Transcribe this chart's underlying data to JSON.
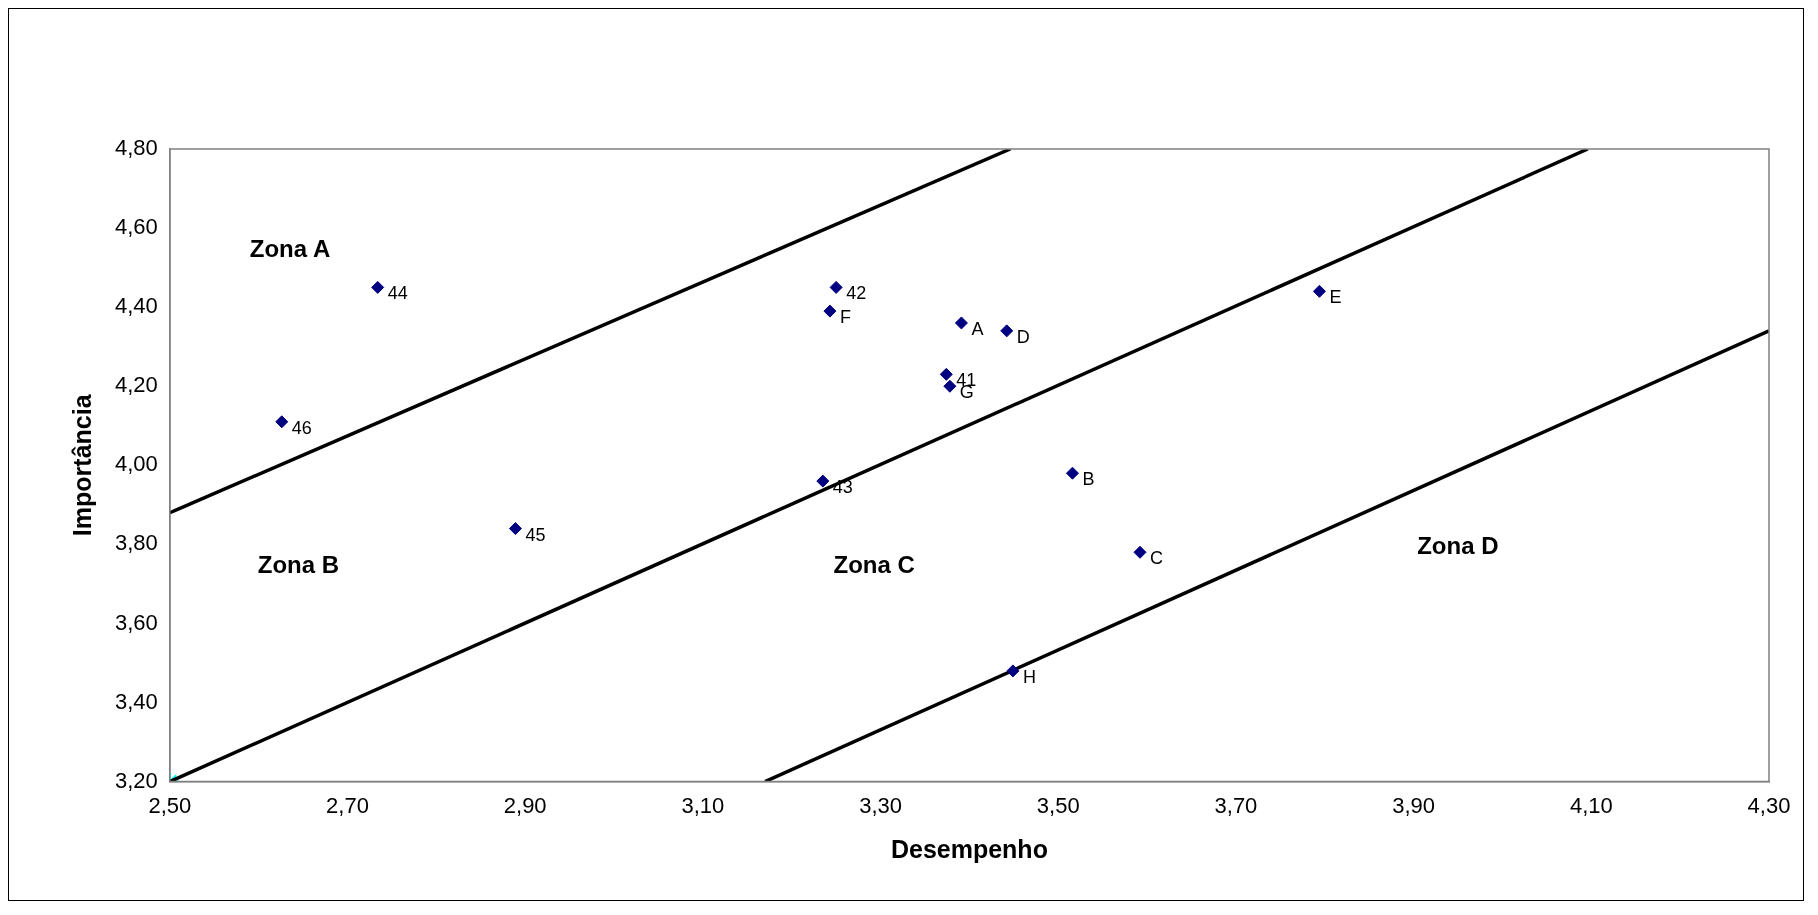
{
  "chart_data": {
    "type": "scatter",
    "xlabel": "Desempenho",
    "ylabel": "Importância",
    "xlim": [
      2.5,
      4.3
    ],
    "xticks": [
      {
        "value": 2.5,
        "label": "2,50"
      },
      {
        "value": 2.7,
        "label": "2,70"
      },
      {
        "value": 2.9,
        "label": "2,90"
      },
      {
        "value": 3.1,
        "label": "3,10"
      },
      {
        "value": 3.3,
        "label": "3,30"
      },
      {
        "value": 3.5,
        "label": "3,50"
      },
      {
        "value": 3.7,
        "label": "3,70"
      },
      {
        "value": 3.9,
        "label": "3,90"
      },
      {
        "value": 4.1,
        "label": "4,10"
      },
      {
        "value": 4.3,
        "label": "4,30"
      }
    ],
    "ylim": [
      3.2,
      4.8
    ],
    "yticks": [
      {
        "value": 3.2,
        "label": "3,20"
      },
      {
        "value": 3.4,
        "label": "3,40"
      },
      {
        "value": 3.6,
        "label": "3,60"
      },
      {
        "value": 3.8,
        "label": "3,80"
      },
      {
        "value": 4.0,
        "label": "4,00"
      },
      {
        "value": 4.2,
        "label": "4,20"
      },
      {
        "value": 4.4,
        "label": "4,40"
      },
      {
        "value": 4.6,
        "label": "4,60"
      },
      {
        "value": 4.8,
        "label": "4,80"
      }
    ],
    "grid": false,
    "legend": false,
    "marker": "diamond",
    "series": [
      {
        "type": "scatter",
        "color": "#000080",
        "x": [
          2.734,
          2.626,
          2.889,
          3.235,
          3.25,
          3.243,
          3.391,
          3.442,
          3.374,
          3.378,
          3.516,
          3.592,
          3.794,
          3.449
        ],
        "values": [
          4.45,
          4.11,
          3.84,
          3.96,
          4.45,
          4.39,
          4.36,
          4.34,
          4.23,
          4.2,
          3.98,
          3.78,
          4.44,
          3.48
        ]
      },
      {
        "type": "line",
        "color": "#000000",
        "marker": "none",
        "x": [
          2.5,
          3.446
        ],
        "values": [
          3.88,
          4.8
        ]
      },
      {
        "type": "line",
        "color": "#000000",
        "marker": "none",
        "x": [
          2.5,
          4.096
        ],
        "values": [
          3.2,
          4.8
        ]
      },
      {
        "type": "line",
        "color": "#000000",
        "marker": "none",
        "x": [
          3.17,
          4.3
        ],
        "values": [
          3.2,
          4.34
        ]
      },
      {
        "type": "scatter",
        "color": "#00ffff",
        "marker": "cross",
        "x": [
          2.5
        ],
        "values": [
          3.2
        ]
      }
    ],
    "annotations": [
      "Zona A",
      "Zona B",
      "Zona C",
      "Zona D",
      {
        "text": "44",
        "x": 2.734,
        "y": 4.45
      },
      {
        "text": "46",
        "x": 2.626,
        "y": 4.11
      },
      {
        "text": "45",
        "x": 2.889,
        "y": 3.84
      },
      {
        "text": "43",
        "x": 3.235,
        "y": 3.96
      },
      {
        "text": "42",
        "x": 3.25,
        "y": 4.45
      },
      {
        "text": "F",
        "x": 3.243,
        "y": 4.39
      },
      {
        "text": "A",
        "x": 3.391,
        "y": 4.36
      },
      {
        "text": "D",
        "x": 3.442,
        "y": 4.34
      },
      {
        "text": "41",
        "x": 3.374,
        "y": 4.23
      },
      {
        "text": "G",
        "x": 3.378,
        "y": 4.2
      },
      {
        "text": "B",
        "x": 3.516,
        "y": 3.98
      },
      {
        "text": "C",
        "x": 3.592,
        "y": 3.78
      },
      {
        "text": "E",
        "x": 3.794,
        "y": 4.44
      },
      {
        "text": "H",
        "x": 3.449,
        "y": 3.48
      }
    ]
  }
}
